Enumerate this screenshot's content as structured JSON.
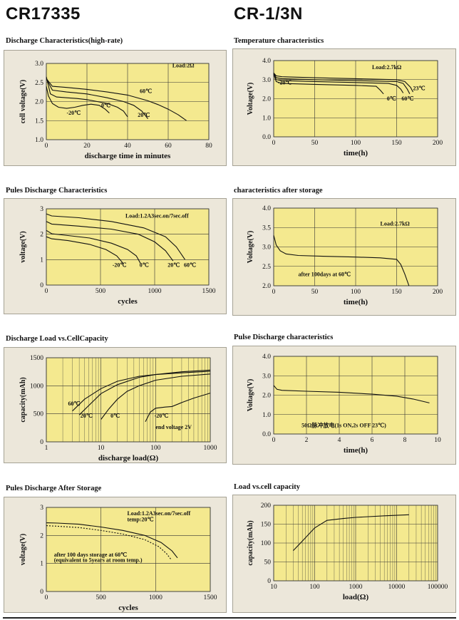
{
  "header": {
    "left": "CR17335",
    "right": "CR-1/3N"
  },
  "colors": {
    "panel_bg": "#ece7da",
    "plot_bg": "#f4e98f",
    "grid": "#333333",
    "curve": "#111111"
  },
  "chart_data": [
    {
      "id": "c1",
      "type": "line",
      "title": "Discharge Characteristics(high-rate)",
      "xlabel": "discharge time in minutes",
      "ylabel": "cell voltage(V)",
      "xlim": [
        0,
        80
      ],
      "ylim": [
        1.0,
        3.0
      ],
      "xticks": [
        "0",
        "20",
        "40",
        "60",
        "80"
      ],
      "yticks": [
        "1.0",
        "1.5",
        "2.0",
        "2.5",
        "3.0"
      ],
      "annotations": [
        {
          "text": "Load:2Ω",
          "x": 62,
          "y": 2.9
        }
      ],
      "series": [
        {
          "label": "-20℃",
          "label_at": [
            10,
            1.65
          ],
          "x": [
            0,
            1,
            3,
            6,
            10,
            14,
            18,
            22,
            26,
            29,
            31
          ],
          "y": [
            2.4,
            2.15,
            1.95,
            1.85,
            1.82,
            1.85,
            1.9,
            1.93,
            1.9,
            1.8,
            1.7
          ]
        },
        {
          "label": "0℃",
          "label_at": [
            27,
            1.85
          ],
          "x": [
            0,
            2,
            5,
            10,
            15,
            20,
            25,
            30,
            35,
            38,
            40
          ],
          "y": [
            2.65,
            2.2,
            2.12,
            2.1,
            2.08,
            2.05,
            2.0,
            1.95,
            1.85,
            1.75,
            1.6
          ]
        },
        {
          "label": "20℃",
          "label_at": [
            45,
            1.6
          ],
          "x": [
            0,
            3,
            10,
            20,
            30,
            38,
            43,
            47,
            50
          ],
          "y": [
            2.6,
            2.3,
            2.25,
            2.2,
            2.1,
            2.0,
            1.9,
            1.75,
            1.55
          ]
        },
        {
          "label": "60℃",
          "label_at": [
            46,
            2.22
          ],
          "x": [
            0,
            3,
            10,
            20,
            30,
            40,
            50,
            55,
            60,
            65,
            69
          ],
          "y": [
            2.6,
            2.4,
            2.37,
            2.32,
            2.25,
            2.17,
            2.02,
            1.92,
            1.8,
            1.65,
            1.5
          ]
        }
      ]
    },
    {
      "id": "c2",
      "type": "line",
      "title": "Temperature characteristics",
      "xlabel": "time(h)",
      "ylabel": "Voltage(V)",
      "xlim": [
        0,
        200
      ],
      "ylim": [
        0.0,
        4.0
      ],
      "xticks": [
        "0",
        "50",
        "100",
        "150",
        "200"
      ],
      "yticks": [
        "0.0",
        "1.0",
        "2.0",
        "3.0",
        "4.0"
      ],
      "annotations": [
        {
          "text": "Load:2.7kΩ",
          "x": 120,
          "y": 3.55
        }
      ],
      "series": [
        {
          "label": "-20℃",
          "label_at": [
            5,
            2.75
          ],
          "x": [
            0,
            3,
            10,
            50,
            100,
            125,
            130,
            134
          ],
          "y": [
            3.3,
            2.9,
            2.8,
            2.75,
            2.7,
            2.65,
            2.45,
            2.25
          ]
        },
        {
          "label": "0℃",
          "label_at": [
            138,
            1.9
          ],
          "x": [
            0,
            3,
            10,
            50,
            100,
            140,
            150,
            155,
            158
          ],
          "y": [
            3.3,
            3.0,
            2.95,
            2.9,
            2.85,
            2.8,
            2.7,
            2.5,
            2.3
          ]
        },
        {
          "label": "60℃",
          "label_at": [
            156,
            1.9
          ],
          "x": [
            0,
            3,
            10,
            50,
            100,
            150,
            158,
            163,
            166
          ],
          "y": [
            3.35,
            3.1,
            3.05,
            3.0,
            2.95,
            2.9,
            2.8,
            2.5,
            2.25
          ]
        },
        {
          "label": "23℃",
          "label_at": [
            170,
            2.45
          ],
          "x": [
            0,
            3,
            10,
            50,
            100,
            150,
            160,
            167,
            170
          ],
          "y": [
            3.35,
            3.2,
            3.15,
            3.1,
            3.05,
            3.0,
            2.9,
            2.6,
            2.35
          ]
        }
      ]
    },
    {
      "id": "c3",
      "type": "line",
      "title": "Pules Discharge Characteristics",
      "xlabel": "cycles",
      "ylabel": "voltage(V)",
      "xlim": [
        0,
        1500
      ],
      "ylim": [
        0,
        3
      ],
      "xticks": [
        "0",
        "500",
        "1000",
        "1500"
      ],
      "yticks": [
        "0",
        "1",
        "2",
        "3"
      ],
      "annotations": [
        {
          "text": "Load:1.2A3sec.on/7sec.off",
          "x": 730,
          "y": 2.65
        }
      ],
      "series": [
        {
          "label": "-20℃",
          "label_at": [
            610,
            0.72
          ],
          "x": [
            0,
            50,
            200,
            400,
            550,
            650,
            710
          ],
          "y": [
            1.9,
            1.82,
            1.75,
            1.6,
            1.4,
            1.15,
            0.85
          ]
        },
        {
          "label": "0℃",
          "label_at": [
            860,
            0.72
          ],
          "x": [
            0,
            50,
            200,
            400,
            600,
            750,
            830,
            870
          ],
          "y": [
            2.15,
            2.02,
            1.95,
            1.85,
            1.65,
            1.4,
            1.15,
            0.85
          ]
        },
        {
          "label": "20℃",
          "label_at": [
            1120,
            0.72
          ],
          "x": [
            0,
            50,
            300,
            600,
            850,
            1000,
            1100,
            1170
          ],
          "y": [
            2.5,
            2.4,
            2.32,
            2.2,
            2.0,
            1.7,
            1.35,
            0.95
          ]
        },
        {
          "label": "60℃",
          "label_at": [
            1270,
            0.72
          ],
          "x": [
            0,
            50,
            300,
            600,
            900,
            1100,
            1200,
            1280
          ],
          "y": [
            2.8,
            2.72,
            2.65,
            2.5,
            2.25,
            1.9,
            1.5,
            1.0
          ]
        }
      ]
    },
    {
      "id": "c4",
      "type": "line",
      "title": "characteristics after storage",
      "xlabel": "time(h)",
      "ylabel": "Voltage(V)",
      "xlim": [
        0,
        200
      ],
      "ylim": [
        2.0,
        4.0
      ],
      "xticks": [
        "0",
        "50",
        "100",
        "150",
        "200"
      ],
      "yticks": [
        "2.0",
        "2.5",
        "3.0",
        "3.5",
        "4.0"
      ],
      "annotations": [
        {
          "text": "Load:2.7kΩ",
          "x": 130,
          "y": 3.55
        },
        {
          "text": "after 100days at 60℃",
          "x": 30,
          "y": 2.25
        }
      ],
      "series": [
        {
          "label": "",
          "x": [
            0,
            3,
            8,
            15,
            30,
            60,
            100,
            130,
            150,
            155,
            160,
            165
          ],
          "y": [
            3.3,
            3.05,
            2.9,
            2.82,
            2.78,
            2.76,
            2.74,
            2.72,
            2.68,
            2.55,
            2.3,
            2.0
          ]
        }
      ]
    },
    {
      "id": "c5",
      "type": "line",
      "xscale": "log",
      "title": "Discharge Load vs.CellCapacity",
      "xlabel": "discharge load(Ω)",
      "ylabel": "capacity(mAh)",
      "xlim": [
        1,
        1000
      ],
      "ylim": [
        0,
        1500
      ],
      "xticks": [
        "1",
        "10",
        "100",
        "1000"
      ],
      "yticks": [
        "0",
        "500",
        "1000",
        "1500"
      ],
      "annotations": [
        {
          "text": "end voltage 2V",
          "x": 100,
          "y": 230
        }
      ],
      "series": [
        {
          "label": "60℃",
          "label_at": [
            2.5,
            650
          ],
          "x": [
            3,
            5,
            10,
            20,
            50,
            100,
            300,
            1000
          ],
          "y": [
            550,
            760,
            950,
            1080,
            1170,
            1200,
            1230,
            1260
          ]
        },
        {
          "label": "20℃",
          "label_at": [
            4.2,
            430
          ],
          "x": [
            4,
            6,
            10,
            20,
            50,
            100,
            300,
            1000
          ],
          "y": [
            480,
            650,
            860,
            1020,
            1150,
            1200,
            1250,
            1280
          ]
        },
        {
          "label": "0℃",
          "label_at": [
            15,
            430
          ],
          "x": [
            10,
            14,
            20,
            30,
            50,
            100,
            300,
            1000
          ],
          "y": [
            400,
            590,
            760,
            900,
            1000,
            1100,
            1170,
            1210
          ]
        },
        {
          "label": "-20℃",
          "label_at": [
            95,
            430
          ],
          "x": [
            65,
            80,
            100,
            150,
            200,
            300,
            500,
            1000
          ],
          "y": [
            360,
            530,
            600,
            620,
            630,
            700,
            780,
            870
          ]
        }
      ]
    },
    {
      "id": "c6",
      "type": "line",
      "title": "Pulse Discharge characteristics",
      "xlabel": "time(h)",
      "ylabel": "Voltage(V)",
      "xlim": [
        0,
        10
      ],
      "ylim": [
        0.0,
        4.0
      ],
      "xticks": [
        "0",
        "2",
        "4",
        "6",
        "8",
        "10"
      ],
      "yticks": [
        "0.0",
        "1.0",
        "2.0",
        "3.0",
        "4.0"
      ],
      "annotations": [
        {
          "text": "50Ω脉冲放电(1s ON,2s OFF 23℃)",
          "x": 1.7,
          "y": 0.35
        }
      ],
      "series": [
        {
          "label": "",
          "x": [
            0,
            0.2,
            0.5,
            2,
            4,
            6,
            7.5,
            8.5,
            9.5
          ],
          "y": [
            2.5,
            2.3,
            2.25,
            2.2,
            2.15,
            2.05,
            1.95,
            1.8,
            1.6
          ]
        }
      ]
    },
    {
      "id": "c7",
      "type": "line",
      "title": "Pules Discharge After Storage",
      "xlabel": "cycles",
      "ylabel": "voltage(V)",
      "xlim": [
        0,
        1500
      ],
      "ylim": [
        0,
        3
      ],
      "xticks": [
        "0",
        "500",
        "1000",
        "1500"
      ],
      "yticks": [
        "0",
        "1",
        "2",
        "3"
      ],
      "annotations": [
        {
          "text": "Load:1.2A3sec.on/7sec.off",
          "x": 740,
          "y": 2.72
        },
        {
          "text": "temp:20℃",
          "x": 740,
          "y": 2.5
        },
        {
          "text": "after 100 days storage at 60℃",
          "x": 70,
          "y": 1.25
        },
        {
          "text": "(equivalent to 5years at room temp.)",
          "x": 70,
          "y": 1.05
        }
      ],
      "series": [
        {
          "label": "",
          "dash": false,
          "x": [
            0,
            100,
            300,
            500,
            700,
            900,
            1050,
            1150,
            1200
          ],
          "y": [
            2.45,
            2.44,
            2.4,
            2.3,
            2.18,
            2.0,
            1.75,
            1.45,
            1.2
          ]
        },
        {
          "label": "",
          "dash": true,
          "x": [
            0,
            100,
            300,
            500,
            700,
            900,
            1030,
            1100,
            1140
          ],
          "y": [
            2.35,
            2.33,
            2.28,
            2.18,
            2.05,
            1.85,
            1.6,
            1.35,
            1.15
          ]
        }
      ]
    },
    {
      "id": "c8",
      "type": "line",
      "xscale": "log",
      "title": "Load vs.cell capacity",
      "xlabel": "load(Ω)",
      "ylabel": "capacity(mAh)",
      "xlim": [
        10,
        100000
      ],
      "ylim": [
        0,
        200
      ],
      "xticks": [
        "10",
        "100",
        "1000",
        "10000",
        "100000"
      ],
      "yticks": [
        "0",
        "50",
        "100",
        "150",
        "200"
      ],
      "annotations": [],
      "series": [
        {
          "label": "",
          "x": [
            30,
            50,
            100,
            200,
            500,
            1000,
            5000,
            20000
          ],
          "y": [
            80,
            105,
            140,
            160,
            165,
            168,
            172,
            175
          ]
        }
      ]
    }
  ]
}
